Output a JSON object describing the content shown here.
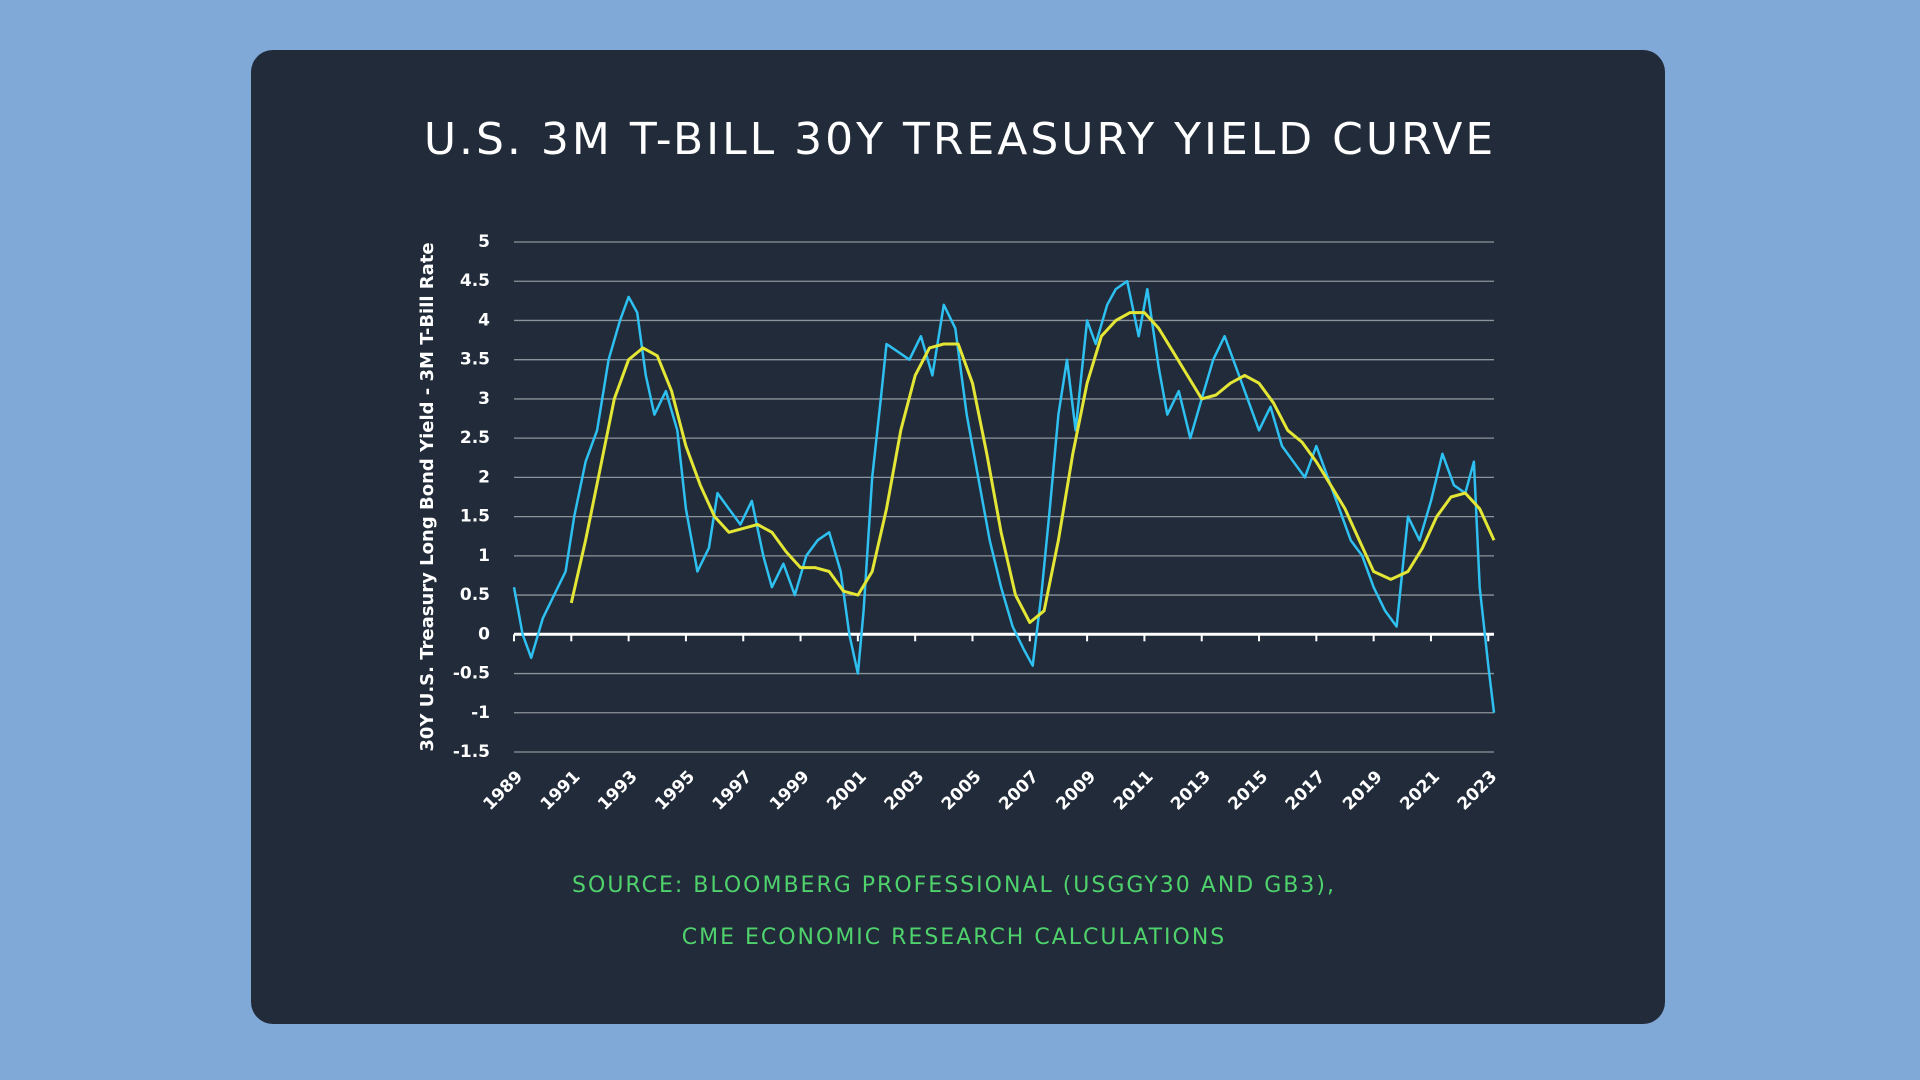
{
  "chart_data": {
    "type": "line",
    "title": "U.S. 3M T-BILL 30Y TREASURY YIELD CURVE",
    "y_label": "30Y U.S. Treasury Long Bond Yield - 3M T-Bill Rate",
    "source": [
      "SOURCE: BLOOMBERG PROFESSIONAL (USGGY30 AND GB3),",
      "CME ECONOMIC RESEARCH CALCULATIONS"
    ],
    "xlim": [
      1989,
      2023.2
    ],
    "xticks": [
      1989,
      1991,
      1993,
      1995,
      1997,
      1999,
      2001,
      2003,
      2005,
      2007,
      2009,
      2011,
      2013,
      2015,
      2017,
      2019,
      2021,
      2023
    ],
    "ylim": [
      -1.5,
      5
    ],
    "yticks": [
      -1.5,
      -1,
      -0.5,
      0,
      0.5,
      1,
      1.5,
      2,
      2.5,
      3,
      3.5,
      4,
      4.5,
      5
    ],
    "grid": true,
    "series": [
      {
        "color": "#2ec0f0",
        "x": [
          1989.0,
          1989.3,
          1989.6,
          1990.0,
          1990.4,
          1990.8,
          1991.1,
          1991.5,
          1991.9,
          1992.3,
          1992.7,
          1993.0,
          1993.3,
          1993.6,
          1993.9,
          1994.3,
          1994.7,
          1995.0,
          1995.4,
          1995.8,
          1996.1,
          1996.5,
          1996.9,
          1997.3,
          1997.7,
          1998.0,
          1998.4,
          1998.8,
          1999.2,
          1999.6,
          2000.0,
          2000.4,
          2000.7,
          2001.0,
          2001.2,
          2001.5,
          2001.8,
          2002.0,
          2002.4,
          2002.8,
          2003.2,
          2003.6,
          2004.0,
          2004.4,
          2004.8,
          2005.2,
          2005.6,
          2006.0,
          2006.4,
          2006.8,
          2007.1,
          2007.4,
          2007.7,
          2008.0,
          2008.3,
          2008.6,
          2009.0,
          2009.3,
          2009.7,
          2010.0,
          2010.4,
          2010.8,
          2011.1,
          2011.5,
          2011.8,
          2012.2,
          2012.6,
          2013.0,
          2013.4,
          2013.8,
          2014.2,
          2014.6,
          2015.0,
          2015.4,
          2015.8,
          2016.2,
          2016.6,
          2017.0,
          2017.4,
          2017.8,
          2018.2,
          2018.6,
          2019.0,
          2019.4,
          2019.8,
          2020.2,
          2020.6,
          2021.0,
          2021.4,
          2021.8,
          2022.2,
          2022.5,
          2022.7,
          2023.0,
          2023.2
        ],
        "values": [
          0.6,
          0.0,
          -0.3,
          0.2,
          0.5,
          0.8,
          1.5,
          2.2,
          2.6,
          3.5,
          4.0,
          4.3,
          4.1,
          3.3,
          2.8,
          3.1,
          2.6,
          1.6,
          0.8,
          1.1,
          1.8,
          1.6,
          1.4,
          1.7,
          1.0,
          0.6,
          0.9,
          0.5,
          1.0,
          1.2,
          1.3,
          0.8,
          0.0,
          -0.5,
          0.3,
          2.0,
          3.0,
          3.7,
          3.6,
          3.5,
          3.8,
          3.3,
          4.2,
          3.9,
          2.8,
          2.0,
          1.2,
          0.6,
          0.1,
          -0.2,
          -0.4,
          0.5,
          1.6,
          2.8,
          3.5,
          2.6,
          4.0,
          3.7,
          4.2,
          4.4,
          4.5,
          3.8,
          4.4,
          3.4,
          2.8,
          3.1,
          2.5,
          3.0,
          3.5,
          3.8,
          3.4,
          3.0,
          2.6,
          2.9,
          2.4,
          2.2,
          2.0,
          2.4,
          2.0,
          1.6,
          1.2,
          1.0,
          0.6,
          0.3,
          0.1,
          1.5,
          1.2,
          1.7,
          2.3,
          1.9,
          1.8,
          2.2,
          0.6,
          -0.4,
          -1.0
        ]
      },
      {
        "color": "#e4e635",
        "x": [
          1991.0,
          1991.5,
          1992.0,
          1992.5,
          1993.0,
          1993.5,
          1994.0,
          1994.5,
          1995.0,
          1995.5,
          1996.0,
          1996.5,
          1997.0,
          1997.5,
          1998.0,
          1998.5,
          1999.0,
          1999.5,
          2000.0,
          2000.5,
          2001.0,
          2001.5,
          2002.0,
          2002.5,
          2003.0,
          2003.5,
          2004.0,
          2004.5,
          2005.0,
          2005.5,
          2006.0,
          2006.5,
          2007.0,
          2007.5,
          2008.0,
          2008.5,
          2009.0,
          2009.5,
          2010.0,
          2010.5,
          2011.0,
          2011.5,
          2012.0,
          2012.5,
          2013.0,
          2013.5,
          2014.0,
          2014.5,
          2015.0,
          2015.5,
          2016.0,
          2016.5,
          2017.0,
          2017.5,
          2018.0,
          2018.5,
          2019.0,
          2019.6,
          2020.2,
          2020.7,
          2021.2,
          2021.7,
          2022.2,
          2022.7,
          2023.2
        ],
        "values": [
          0.4,
          1.2,
          2.1,
          3.0,
          3.5,
          3.65,
          3.55,
          3.1,
          2.4,
          1.9,
          1.5,
          1.3,
          1.35,
          1.4,
          1.3,
          1.05,
          0.85,
          0.85,
          0.8,
          0.55,
          0.5,
          0.8,
          1.6,
          2.6,
          3.3,
          3.65,
          3.7,
          3.7,
          3.2,
          2.3,
          1.3,
          0.5,
          0.15,
          0.3,
          1.2,
          2.3,
          3.2,
          3.8,
          4.0,
          4.1,
          4.1,
          3.9,
          3.6,
          3.3,
          3.0,
          3.05,
          3.2,
          3.3,
          3.2,
          2.95,
          2.6,
          2.45,
          2.2,
          1.9,
          1.6,
          1.2,
          0.8,
          0.7,
          0.8,
          1.1,
          1.5,
          1.75,
          1.8,
          1.6,
          1.2
        ]
      }
    ]
  }
}
